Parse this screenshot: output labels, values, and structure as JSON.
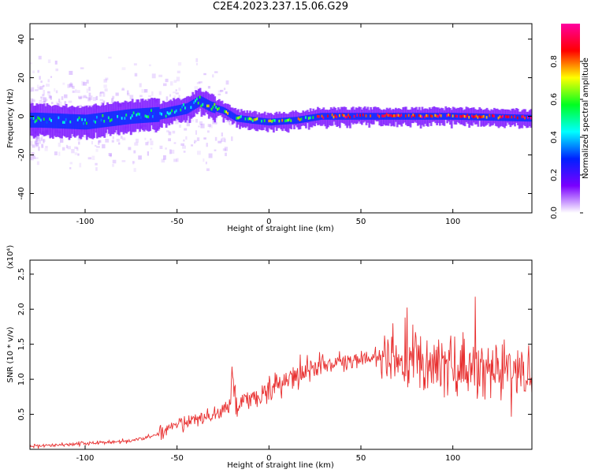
{
  "title": "C2E4.2023.237.15.06.G29",
  "chart_data": [
    {
      "type": "heatmap",
      "name": "spectrogram",
      "xlabel": "Height of straight line (km)",
      "ylabel": "Frequency (Hz)",
      "xlim": [
        -130,
        143
      ],
      "ylim": [
        -50,
        48
      ],
      "xticks": [
        -100,
        -50,
        0,
        50,
        100
      ],
      "yticks": [
        -40,
        -20,
        0,
        20,
        40
      ],
      "colorbar": {
        "label": "Normalized spectral amplitude",
        "range": [
          0,
          1
        ],
        "ticks": [
          0.0,
          0.2,
          0.4,
          0.6,
          0.8
        ],
        "colors": [
          "#ffffff",
          "#7a00ff",
          "#0020ff",
          "#00ffff",
          "#00ff20",
          "#ffff00",
          "#ff0000",
          "#ff00a0"
        ]
      },
      "ridge_frequency": [
        {
          "x": -125,
          "y": -2
        },
        {
          "x": -100,
          "y": -3
        },
        {
          "x": -75,
          "y": 0
        },
        {
          "x": -60,
          "y": 1
        },
        {
          "x": -45,
          "y": 4
        },
        {
          "x": -38,
          "y": 8
        },
        {
          "x": -32,
          "y": 5
        },
        {
          "x": -25,
          "y": 3
        },
        {
          "x": -18,
          "y": -1
        },
        {
          "x": -10,
          "y": -2
        },
        {
          "x": 0,
          "y": -3
        },
        {
          "x": 15,
          "y": -2
        },
        {
          "x": 28,
          "y": 0
        },
        {
          "x": 50,
          "y": 0
        },
        {
          "x": 100,
          "y": 0
        },
        {
          "x": 143,
          "y": -1
        }
      ]
    },
    {
      "type": "line",
      "name": "snr",
      "xlabel": "Height of straight line (km)",
      "ylabel": "SNR (10 * v/v)",
      "ylabel_multiplier": "(x10⁴)",
      "color": "#e83030",
      "xlim": [
        -130,
        143
      ],
      "ylim": [
        0,
        2.7
      ],
      "xticks": [
        -100,
        -50,
        0,
        50,
        100
      ],
      "yticks": [
        0.5,
        1.0,
        1.5,
        2.0,
        2.5
      ],
      "series": [
        {
          "x": [
            -130,
            -110,
            -90,
            -75,
            -65,
            -55,
            -48,
            -40,
            -30,
            -25,
            -21,
            -20,
            -18,
            -10,
            0,
            10,
            20,
            30,
            40,
            50,
            60,
            65,
            70,
            80,
            90,
            100,
            110,
            120,
            130,
            143
          ],
          "y": [
            0.05,
            0.07,
            0.1,
            0.12,
            0.18,
            0.27,
            0.35,
            0.42,
            0.5,
            0.55,
            0.62,
            1.12,
            0.65,
            0.75,
            0.85,
            1.0,
            1.15,
            1.2,
            1.25,
            1.28,
            1.3,
            1.32,
            1.3,
            1.25,
            1.2,
            1.2,
            1.15,
            1.1,
            1.1,
            1.05
          ]
        }
      ]
    }
  ]
}
